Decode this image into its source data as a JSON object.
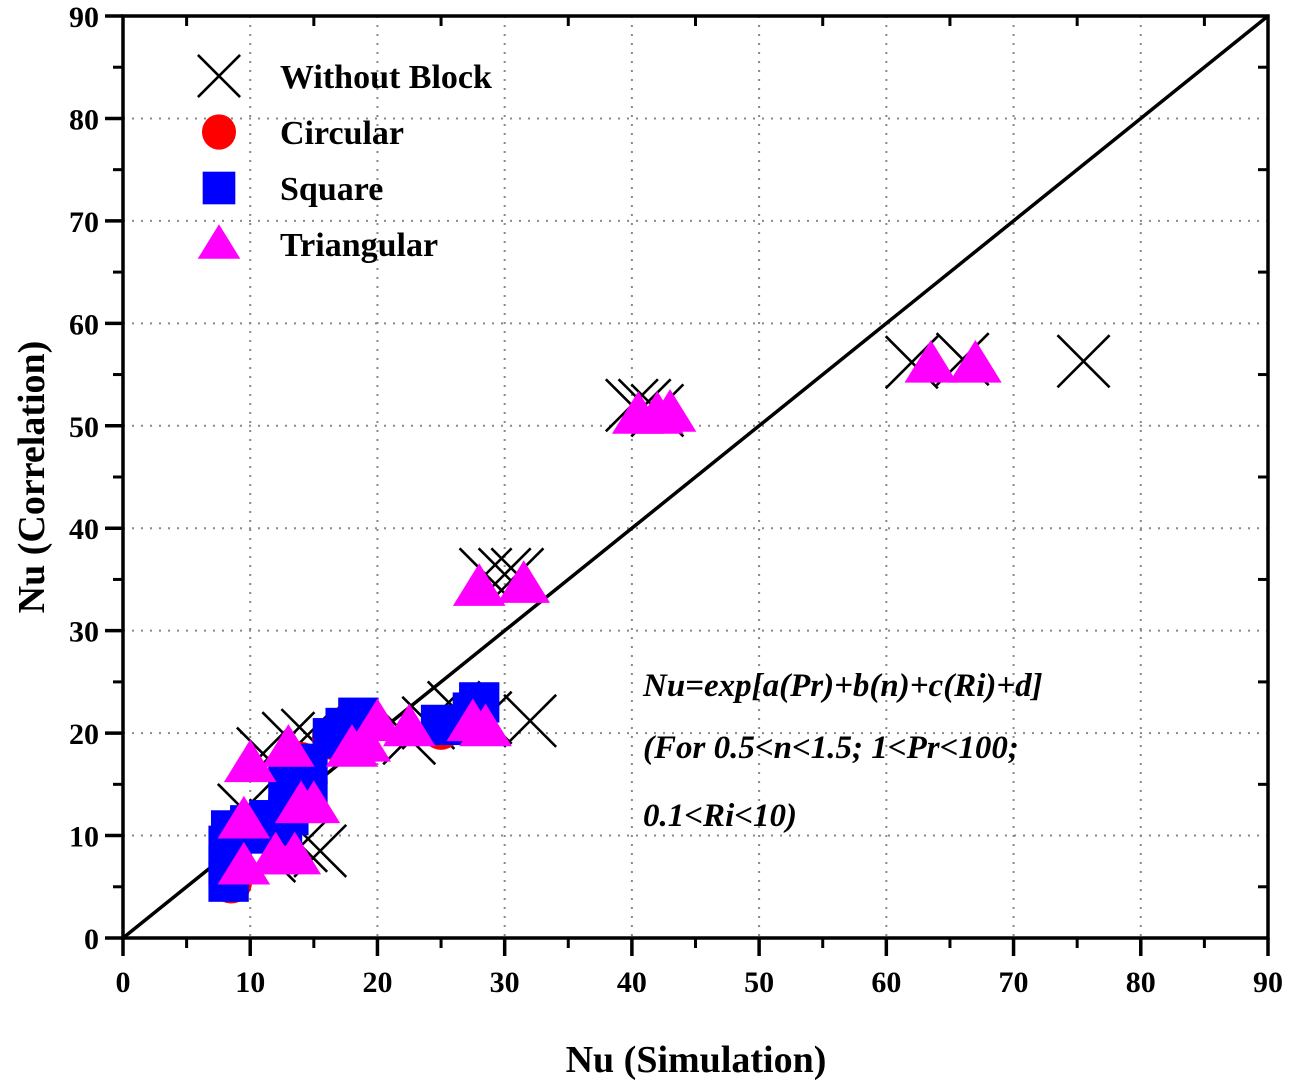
{
  "chart_data": {
    "type": "scatter",
    "title": "",
    "xlabel": "Nu (Simulation)",
    "ylabel": "Nu (Correlation)",
    "xlim": [
      0,
      90
    ],
    "ylim": [
      0,
      90
    ],
    "xticks": [
      0,
      10,
      20,
      30,
      40,
      50,
      60,
      70,
      80,
      90
    ],
    "yticks": [
      0,
      10,
      20,
      30,
      40,
      50,
      60,
      70,
      80,
      90
    ],
    "grid": true,
    "legend_position": "top-left",
    "reference_line": {
      "name": "y = x",
      "from": [
        0,
        0
      ],
      "to": [
        90,
        90
      ]
    },
    "annotation": {
      "lines": [
        "Nu=exp[a(Pr)+b(n)+c(Ri)+d]",
        "(For 0.5<n<1.5; 1<Pr<100;",
        "0.1<Ri<10)"
      ]
    },
    "series": [
      {
        "name": "Without Block",
        "marker": "x",
        "color": "#000000",
        "points": [
          [
            9.5,
            12.5
          ],
          [
            11,
            18
          ],
          [
            12,
            11
          ],
          [
            13,
            19.5
          ],
          [
            14.5,
            19.8
          ],
          [
            14,
            9
          ],
          [
            15.5,
            8.5
          ],
          [
            13.5,
            14
          ],
          [
            11.5,
            8
          ],
          [
            22.5,
            19.5
          ],
          [
            26,
            22.5
          ],
          [
            28.5,
            21.5
          ],
          [
            32,
            21.2
          ],
          [
            24,
            21
          ],
          [
            28.5,
            35.5
          ],
          [
            30,
            35.5
          ],
          [
            31,
            35.5
          ],
          [
            40,
            52
          ],
          [
            41,
            52
          ],
          [
            42,
            51.5
          ],
          [
            62,
            56.2
          ],
          [
            66,
            56.5
          ],
          [
            75.5,
            56.3
          ]
        ]
      },
      {
        "name": "Circular",
        "marker": "circle",
        "color": "#ff0000",
        "points": [
          [
            8.5,
            5.5
          ],
          [
            8.5,
            8.5
          ],
          [
            9,
            10.5
          ],
          [
            11,
            11
          ],
          [
            12.5,
            11
          ],
          [
            13.5,
            15
          ],
          [
            14,
            17
          ],
          [
            16.5,
            19.5
          ],
          [
            18,
            21
          ],
          [
            25,
            20.5
          ],
          [
            27.5,
            21.5
          ]
        ]
      },
      {
        "name": "Square",
        "marker": "square",
        "color": "#0000ff",
        "points": [
          [
            8.3,
            5.5
          ],
          [
            8.3,
            7
          ],
          [
            8.3,
            9
          ],
          [
            8.5,
            10.5
          ],
          [
            10,
            11
          ],
          [
            10.5,
            10.2
          ],
          [
            11.5,
            11.5
          ],
          [
            12.5,
            11
          ],
          [
            13,
            15
          ],
          [
            13.5,
            16.5
          ],
          [
            14.5,
            17
          ],
          [
            13,
            12
          ],
          [
            14.5,
            13.5
          ],
          [
            16.5,
            19.5
          ],
          [
            17.5,
            20.5
          ],
          [
            18.5,
            21.5
          ],
          [
            25,
            20.8
          ],
          [
            27.5,
            22
          ],
          [
            28,
            23
          ]
        ]
      },
      {
        "name": "Triangular",
        "marker": "triangle",
        "color": "#ff00ff",
        "points": [
          [
            9.5,
            7
          ],
          [
            9.5,
            11.5
          ],
          [
            10,
            17
          ],
          [
            12,
            8
          ],
          [
            13.5,
            8
          ],
          [
            13,
            18.5
          ],
          [
            14,
            13
          ],
          [
            15,
            13
          ],
          [
            18,
            18.5
          ],
          [
            19,
            19
          ],
          [
            20,
            21
          ],
          [
            22.5,
            20.5
          ],
          [
            27.5,
            21
          ],
          [
            28.5,
            20.5
          ],
          [
            28,
            34.2
          ],
          [
            31.5,
            34.5
          ],
          [
            40.5,
            51
          ],
          [
            42,
            51
          ],
          [
            43,
            51.2
          ],
          [
            63.5,
            56
          ],
          [
            67,
            56
          ]
        ]
      }
    ]
  }
}
